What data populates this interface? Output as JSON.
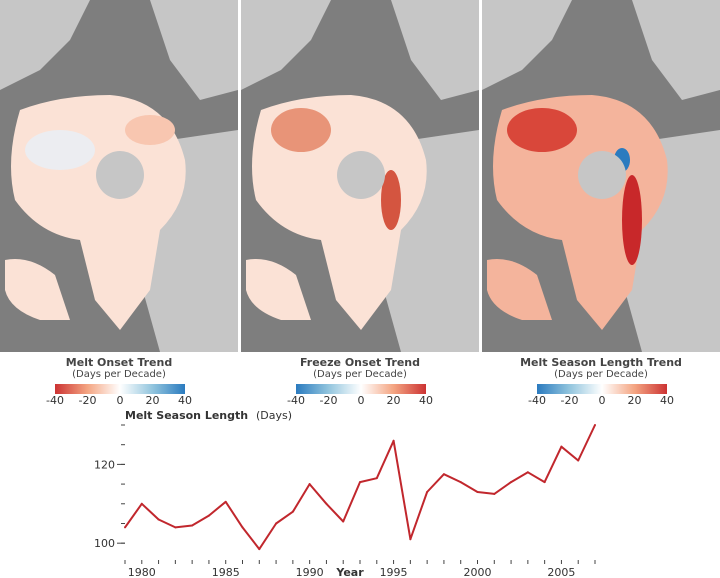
{
  "maps": [
    {
      "name": "Melt Onset Trend",
      "unit": "(Days per Decade)",
      "ticks": [
        "-40",
        "-20",
        "0",
        "20",
        "40"
      ],
      "colors": [
        "#cc3333",
        "#f4a582",
        "#ffffff",
        "#92c5de",
        "#2b7bbf"
      ]
    },
    {
      "name": "Freeze Onset Trend",
      "unit": "(Days per Decade)",
      "ticks": [
        "-40",
        "-20",
        "0",
        "20",
        "40"
      ],
      "colors": [
        "#2b7bbf",
        "#92c5de",
        "#ffffff",
        "#f4a582",
        "#cc3333"
      ]
    },
    {
      "name": "Melt Season Length Trend",
      "unit": "(Days per Decade)",
      "ticks": [
        "-40",
        "-20",
        "0",
        "20",
        "40"
      ],
      "colors": [
        "#2b7bbf",
        "#92c5de",
        "#ffffff",
        "#f4a582",
        "#cc3333"
      ]
    }
  ],
  "colors": {
    "ocean": "#7e7e7e",
    "land": "#c6c6c6",
    "ice_base": "#fbe2d6",
    "line": "#c1272d"
  },
  "chart_data": {
    "type": "line",
    "title": "Melt Season Length",
    "title_unit": "(Days)",
    "xlabel": "Year",
    "x_ticks": [
      1980,
      1985,
      1990,
      1995,
      2000,
      2005
    ],
    "y_ticks": [
      100,
      120
    ],
    "xlim": [
      1979,
      2007
    ],
    "ylim": [
      97,
      130
    ],
    "series": [
      {
        "x": [
          1979,
          1980,
          1981,
          1982,
          1983,
          1984,
          1985,
          1986,
          1987,
          1988,
          1989,
          1990,
          1991,
          1992,
          1993,
          1994,
          1995,
          1996,
          1997,
          1998,
          1999,
          2000,
          2001,
          2002,
          2003,
          2004,
          2005,
          2006,
          2007
        ],
        "values": [
          104,
          110,
          106,
          104,
          104.5,
          107,
          110.5,
          104,
          98.5,
          105,
          108,
          115,
          110,
          105.5,
          115.5,
          116.5,
          126,
          101,
          113,
          117.5,
          115.5,
          113,
          112.5,
          115.5,
          118,
          115.5,
          124.5,
          121,
          130
        ]
      }
    ]
  }
}
